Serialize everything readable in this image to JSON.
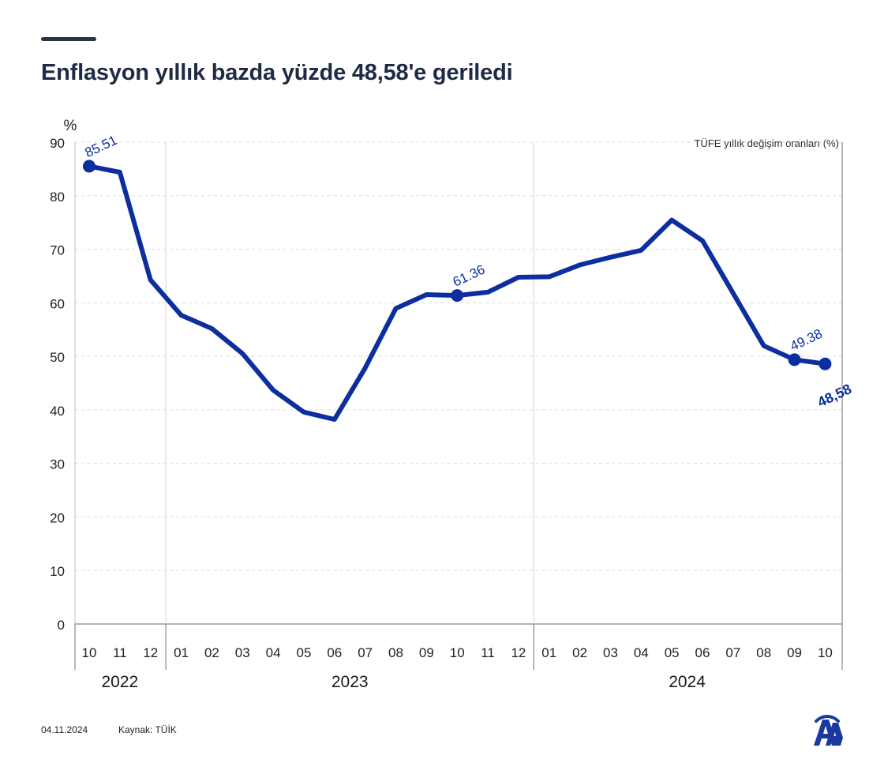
{
  "title": "Enflasyon yıllık bazda yüzde 48,58'e geriledi",
  "footer": {
    "date": "04.11.2024",
    "source": "Kaynak: TÜİK"
  },
  "logo": {
    "icon": "aa-logo-icon"
  },
  "colors": {
    "line": "#0c2e9e",
    "title": "#1f2a44"
  },
  "chart_data": {
    "type": "line",
    "title": "Enflasyon yıllık bazda yüzde 48,58'e geriledi",
    "ylabel": "%",
    "legend_text": "TÜFE yıllık değişim oranları (%)",
    "ylim": [
      0,
      90
    ],
    "yticks": [
      "0",
      "10",
      "20",
      "30",
      "40",
      "50",
      "60",
      "70",
      "80",
      "90"
    ],
    "months": [
      "10",
      "11",
      "12",
      "01",
      "02",
      "03",
      "04",
      "05",
      "06",
      "07",
      "08",
      "09",
      "10",
      "11",
      "12",
      "01",
      "02",
      "03",
      "04",
      "05",
      "06",
      "07",
      "08",
      "09",
      "10"
    ],
    "years": [
      {
        "label": "2022",
        "start": 0,
        "end": 2
      },
      {
        "label": "2023",
        "start": 3,
        "end": 14
      },
      {
        "label": "2024",
        "start": 15,
        "end": 24
      }
    ],
    "series": [
      {
        "name": "TÜFE yıllık değişim oranları (%)",
        "values": [
          85.51,
          84.39,
          64.27,
          57.68,
          55.18,
          50.51,
          43.68,
          39.59,
          38.21,
          47.83,
          58.94,
          61.53,
          61.36,
          61.98,
          64.77,
          64.86,
          67.07,
          68.5,
          69.8,
          75.45,
          71.6,
          61.78,
          51.97,
          49.38,
          48.58
        ]
      }
    ],
    "highlights": [
      {
        "index": 0,
        "label": "85.51",
        "style": "normal"
      },
      {
        "index": 12,
        "label": "61.36",
        "style": "normal"
      },
      {
        "index": 23,
        "label": "49.38",
        "style": "normal"
      },
      {
        "index": 24,
        "label": "48,58",
        "style": "bold"
      }
    ],
    "grid": true
  }
}
